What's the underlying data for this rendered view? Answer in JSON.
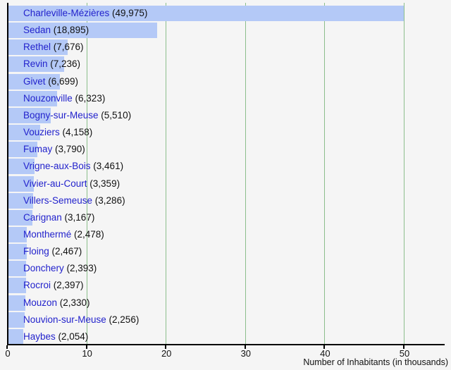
{
  "chart_data": {
    "type": "bar",
    "orientation": "horizontal",
    "title": "",
    "xlabel": "Number of Inhabitants (in thousands)",
    "ylabel": "",
    "categories": [
      "Charleville-Mézières",
      "Sedan",
      "Rethel",
      "Revin",
      "Givet",
      "Nouzonville",
      "Bogny-sur-Meuse",
      "Vouziers",
      "Fumay",
      "Vrigne-aux-Bois",
      "Vivier-au-Court",
      "Villers-Semeuse",
      "Carignan",
      "Monthermé",
      "Floing",
      "Donchery",
      "Rocroi",
      "Mouzon",
      "Nouvion-sur-Meuse",
      "Haybes"
    ],
    "values": [
      49975,
      18895,
      7676,
      7236,
      6699,
      6323,
      5510,
      4158,
      3790,
      3461,
      3359,
      3286,
      3167,
      2478,
      2467,
      2393,
      2397,
      2330,
      2256,
      2054
    ],
    "value_labels": [
      "(49,975)",
      "(18,895)",
      "(7,676)",
      "(7,236)",
      "(6,699)",
      "(6,323)",
      "(5,510)",
      "(4,158)",
      "(3,790)",
      "(3,461)",
      "(3,359)",
      "(3,286)",
      "(3,167)",
      "(2,478)",
      "(2,467)",
      "(2,393)",
      "(2,397)",
      "(2,330)",
      "(2,256)",
      "(2,054)"
    ],
    "xticks": [
      0,
      10,
      20,
      30,
      40,
      50
    ],
    "xtick_labels": [
      "0",
      "10",
      "20",
      "30",
      "40",
      "50"
    ],
    "xlim": [
      0,
      55
    ],
    "grid": "vertical-green-lines-at-ticks",
    "units_note": "bar values are inhabitants; axis shown in thousands"
  },
  "colors": {
    "background": "#f5f5f5",
    "bar_fill": "#b4c9f7",
    "town_text": "#2222cc",
    "value_text": "#111111",
    "gridline": "#8cbe8c",
    "axis": "#000000",
    "tick_text": "#111111"
  }
}
